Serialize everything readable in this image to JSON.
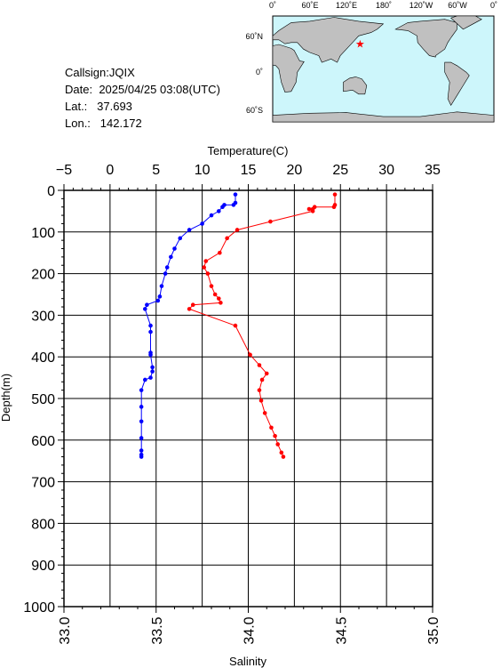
{
  "station": {
    "callsign_label": "Callsign:",
    "callsign": "JQIX",
    "date_label": "Date:",
    "date": "2025/04/25 03:08(UTC)",
    "lat_label": "Lat.:",
    "lat": "37.693",
    "lon_label": "Lon.:",
    "lon": "142.172"
  },
  "map": {
    "lon_ticks": [
      "0˚",
      "60˚E",
      "120˚E",
      "180˚",
      "120˚W",
      "60˚W",
      "0˚"
    ],
    "lat_ticks": [
      "60˚N",
      "0˚",
      "60˚S"
    ],
    "marker": {
      "lat": 37.693,
      "lon": 142.172
    },
    "colors": {
      "ocean": "#cdf6fb",
      "land": "#c0c0c0",
      "marker": "#ff0000"
    }
  },
  "chart_data": {
    "type": "line",
    "top_axis_label": "Temperature(C)",
    "bottom_axis_label": "Salinity",
    "y_axis_label": "Depth(m)",
    "temperature_range": [
      -5,
      35
    ],
    "temperature_ticks": [
      "−5",
      "0",
      "5",
      "10",
      "15",
      "20",
      "25",
      "30",
      "35"
    ],
    "salinity_range": [
      33.0,
      35.0
    ],
    "salinity_ticks": [
      "33.0",
      "33.5",
      "34.0",
      "34.5",
      "35.0"
    ],
    "depth_range": [
      0,
      1000
    ],
    "depth_ticks": [
      "0",
      "100",
      "200",
      "300",
      "400",
      "500",
      "600",
      "700",
      "800",
      "900",
      "1000"
    ],
    "grid": true,
    "series": [
      {
        "color": "#ff0000",
        "points": [
          [
            24.4,
            10
          ],
          [
            24.4,
            35
          ],
          [
            24.3,
            40
          ],
          [
            22.2,
            40
          ],
          [
            22.0,
            45
          ],
          [
            21.6,
            45
          ],
          [
            22.0,
            50
          ],
          [
            17.4,
            75
          ],
          [
            13.8,
            95
          ],
          [
            12.7,
            115
          ],
          [
            11.9,
            150
          ],
          [
            10.4,
            170
          ],
          [
            10.2,
            185
          ],
          [
            10.6,
            200
          ],
          [
            11.0,
            230
          ],
          [
            11.4,
            250
          ],
          [
            11.8,
            260
          ],
          [
            12.0,
            270
          ],
          [
            9.0,
            275
          ],
          [
            8.6,
            285
          ],
          [
            13.6,
            325
          ],
          [
            15.2,
            395
          ],
          [
            16.2,
            420
          ],
          [
            17.0,
            440
          ],
          [
            16.5,
            455
          ],
          [
            16.2,
            480
          ],
          [
            16.4,
            505
          ],
          [
            16.8,
            535
          ],
          [
            17.5,
            570
          ],
          [
            17.9,
            590
          ],
          [
            18.2,
            610
          ],
          [
            18.6,
            630
          ],
          [
            18.8,
            640
          ]
        ]
      },
      {
        "color": "#0000ff",
        "points": [
          [
            33.93,
            10
          ],
          [
            33.93,
            30
          ],
          [
            33.92,
            35
          ],
          [
            33.87,
            35
          ],
          [
            33.86,
            40
          ],
          [
            33.84,
            50
          ],
          [
            33.8,
            60
          ],
          [
            33.75,
            80
          ],
          [
            33.68,
            95
          ],
          [
            33.63,
            115
          ],
          [
            33.6,
            140
          ],
          [
            33.58,
            160
          ],
          [
            33.56,
            185
          ],
          [
            33.55,
            200
          ],
          [
            33.53,
            230
          ],
          [
            33.52,
            255
          ],
          [
            33.51,
            265
          ],
          [
            33.45,
            275
          ],
          [
            33.44,
            285
          ],
          [
            33.47,
            325
          ],
          [
            33.47,
            340
          ],
          [
            33.47,
            390
          ],
          [
            33.47,
            395
          ],
          [
            33.48,
            425
          ],
          [
            33.48,
            435
          ],
          [
            33.47,
            450
          ],
          [
            33.44,
            455
          ],
          [
            33.42,
            480
          ],
          [
            33.42,
            520
          ],
          [
            33.42,
            555
          ],
          [
            33.42,
            595
          ],
          [
            33.42,
            625
          ],
          [
            33.42,
            635
          ],
          [
            33.42,
            640
          ]
        ]
      }
    ]
  }
}
